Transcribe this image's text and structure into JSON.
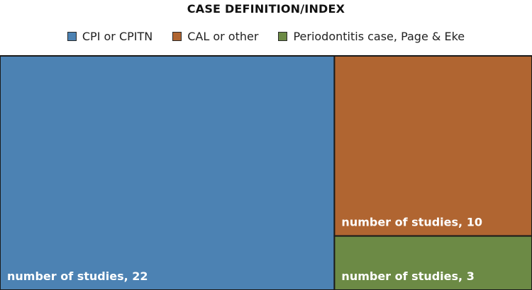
{
  "chart_data": {
    "type": "treemap",
    "title": "CASE DEFINITION/INDEX",
    "series": [
      {
        "name": "CPI or CPITN",
        "value": 22,
        "label": "number of studies, 22",
        "color": "#4c82b3"
      },
      {
        "name": "CAL or other",
        "value": 10,
        "label": "number of studies, 10",
        "color": "#b06531"
      },
      {
        "name": "Periodontitis case, Page & Eke",
        "value": 3,
        "label": "number of studies, 3",
        "color": "#6c8a45"
      }
    ],
    "legend_position": "top-center"
  }
}
